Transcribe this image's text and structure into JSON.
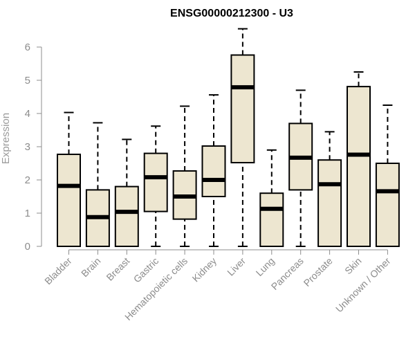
{
  "chart_data": {
    "type": "boxplot",
    "title": "ENSG00000212300 - U3",
    "xlabel": "",
    "ylabel": "Expression",
    "ylim": [
      0,
      6.5
    ],
    "yticks": [
      "0",
      "1",
      "2",
      "3",
      "4",
      "5",
      "6"
    ],
    "grid": false,
    "legend": "none",
    "colors": {
      "box_fill": "#ede6d0",
      "box_stroke": "#000000",
      "axis": "#8c8c8c"
    },
    "categories": [
      "Bladder",
      "Brain",
      "Breast",
      "Gastric",
      "Hematopoietic cells",
      "Kidney",
      "Liver",
      "Lung",
      "Pancreas",
      "Prostate",
      "Skin",
      "Unknown / Other"
    ],
    "boxes": [
      {
        "min": 0,
        "q1": 0,
        "median": 1.82,
        "q3": 2.77,
        "max": 4.03
      },
      {
        "min": 0,
        "q1": 0,
        "median": 0.88,
        "q3": 1.7,
        "max": 3.72
      },
      {
        "min": 0,
        "q1": 0,
        "median": 1.04,
        "q3": 1.8,
        "max": 3.22
      },
      {
        "min": 0,
        "q1": 1.05,
        "median": 2.08,
        "q3": 2.8,
        "max": 3.62
      },
      {
        "min": 0,
        "q1": 0.82,
        "median": 1.5,
        "q3": 2.27,
        "max": 4.22
      },
      {
        "min": 0,
        "q1": 1.5,
        "median": 2.0,
        "q3": 3.02,
        "max": 4.56
      },
      {
        "min": 0,
        "q1": 2.52,
        "median": 4.79,
        "q3": 5.76,
        "max": 6.55
      },
      {
        "min": 0,
        "q1": 0,
        "median": 1.13,
        "q3": 1.6,
        "max": 2.9
      },
      {
        "min": 0,
        "q1": 1.7,
        "median": 2.67,
        "q3": 3.7,
        "max": 4.7
      },
      {
        "min": 0,
        "q1": 0,
        "median": 1.87,
        "q3": 2.6,
        "max": 3.45
      },
      {
        "min": 0,
        "q1": 0,
        "median": 2.76,
        "q3": 4.81,
        "max": 5.25
      },
      {
        "min": 0,
        "q1": 0,
        "median": 1.66,
        "q3": 2.5,
        "max": 4.25
      }
    ]
  }
}
